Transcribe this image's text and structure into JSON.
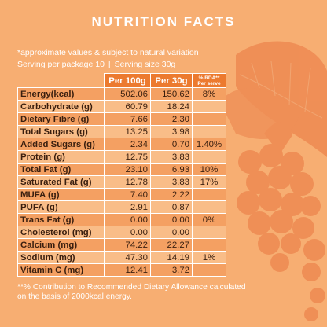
{
  "title": "NUTRITION FACTS",
  "note": "*approximate values & subject to natural variation",
  "serving": {
    "per_package": "Serving per package 10",
    "separator": "|",
    "size": "Serving size 30g"
  },
  "columns": {
    "per100": "Per 100g",
    "per30": "Per 30g",
    "rda": "% RDA** Per serve"
  },
  "rows": [
    {
      "label": "Energy(kcal)",
      "per100": "502.06",
      "per30": "150.62",
      "rda": "8%"
    },
    {
      "label": "Carbohydrate (g)",
      "per100": "60.79",
      "per30": "18.24",
      "rda": ""
    },
    {
      "label": "Dietary Fibre (g)",
      "per100": "7.66",
      "per30": "2.30",
      "rda": ""
    },
    {
      "label": "Total Sugars (g)",
      "per100": "13.25",
      "per30": "3.98",
      "rda": ""
    },
    {
      "label": "Added Sugars (g)",
      "per100": "2.34",
      "per30": "0.70",
      "rda": "1.40%"
    },
    {
      "label": "Protein (g)",
      "per100": "12.75",
      "per30": "3.83",
      "rda": ""
    },
    {
      "label": "Total Fat (g)",
      "per100": "23.10",
      "per30": "6.93",
      "rda": "10%"
    },
    {
      "label": "Saturated Fat (g)",
      "per100": "12.78",
      "per30": "3.83",
      "rda": "17%"
    },
    {
      "label": "MUFA (g)",
      "per100": "7.40",
      "per30": "2.22",
      "rda": ""
    },
    {
      "label": "PUFA (g)",
      "per100": "2.91",
      "per30": "0.87",
      "rda": ""
    },
    {
      "label": "Trans Fat (g)",
      "per100": "0.00",
      "per30": "0.00",
      "rda": "0%"
    },
    {
      "label": "Cholesterol (mg)",
      "per100": "0.00",
      "per30": "0.00",
      "rda": ""
    },
    {
      "label": "Calcium (mg)",
      "per100": "74.22",
      "per30": "22.27",
      "rda": ""
    },
    {
      "label": "Sodium (mg)",
      "per100": "47.30",
      "per30": "14.19",
      "rda": "1%"
    },
    {
      "label": "Vitamin C (mg)",
      "per100": "12.41",
      "per30": "3.72",
      "rda": ""
    }
  ],
  "footer": "**% Contribution to Recommended Dietary Allowance calculated on the basis of 2000kcal energy.",
  "colors": {
    "background": "#f7ae72",
    "header": "#ec7a2f",
    "row_alt": "#f4a062",
    "text_dark": "#3a1f0f",
    "illustration": "#ee8a52"
  }
}
